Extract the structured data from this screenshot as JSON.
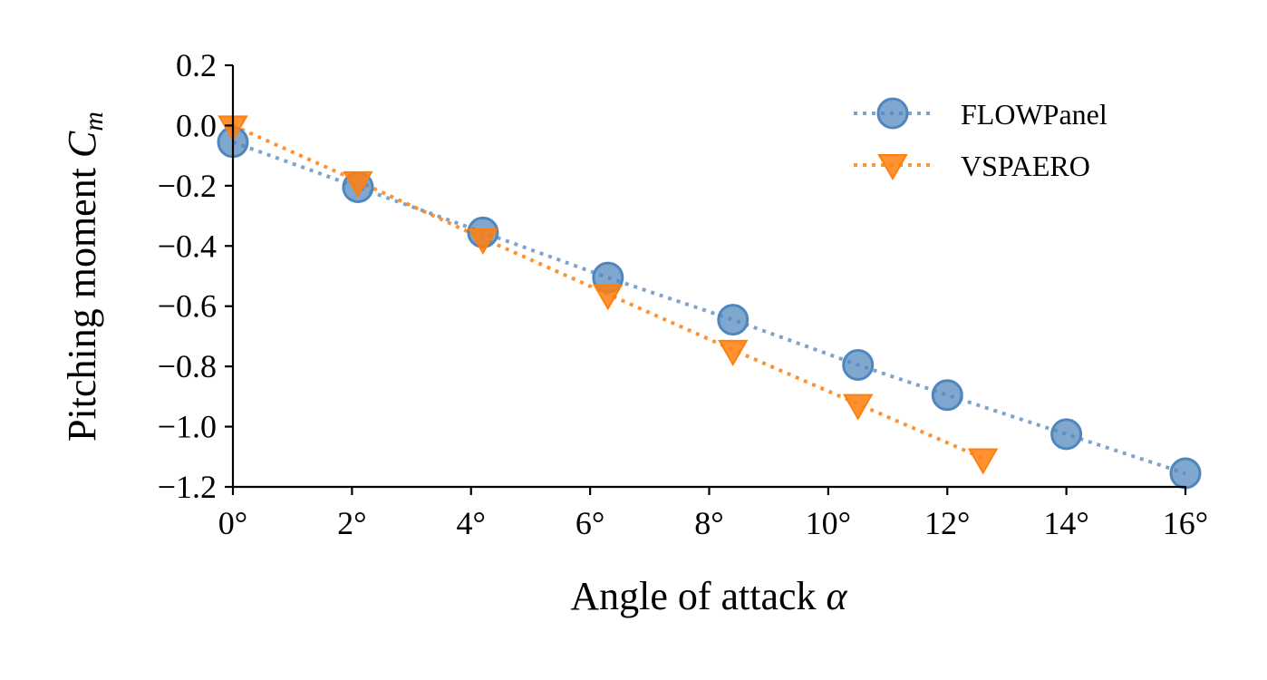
{
  "chart_data": {
    "type": "line",
    "xlabel": "Angle of attack",
    "xlabel_symbol": "α",
    "ylabel": "Pitching moment",
    "ylabel_symbol": "C",
    "ylabel_subscript": "m",
    "xlim": [
      0,
      16
    ],
    "ylim": [
      -1.2,
      0.2
    ],
    "xticks": [
      0,
      2,
      4,
      6,
      8,
      10,
      12,
      14,
      16
    ],
    "xtick_labels": [
      "0°",
      "2°",
      "4°",
      "6°",
      "8°",
      "10°",
      "12°",
      "14°",
      "16°"
    ],
    "yticks": [
      0.2,
      0.0,
      -0.2,
      -0.4,
      -0.6,
      -0.8,
      -1.0,
      -1.2
    ],
    "ytick_labels": [
      "0.2",
      "0.0",
      "−0.2",
      "−0.4",
      "−0.6",
      "−0.8",
      "−1.0",
      "−1.2"
    ],
    "grid": false,
    "legend_position": "top-right",
    "series": [
      {
        "name": "FLOWPanel",
        "color": "#4f86bd",
        "marker": "circle",
        "line_style": "dotted",
        "x": [
          0,
          2.1,
          4.2,
          6.3,
          8.4,
          10.5,
          12.0,
          14.0,
          16.0
        ],
        "y": [
          -0.055,
          -0.205,
          -0.355,
          -0.505,
          -0.645,
          -0.795,
          -0.895,
          -1.025,
          -1.155
        ]
      },
      {
        "name": "VSPAERO",
        "color": "#ff7f0e",
        "marker": "triangle-down",
        "line_style": "dotted",
        "x": [
          0,
          2.1,
          4.2,
          6.3,
          8.4,
          10.5,
          12.6
        ],
        "y": [
          0.0,
          -0.185,
          -0.375,
          -0.56,
          -0.745,
          -0.925,
          -1.105
        ]
      }
    ]
  }
}
